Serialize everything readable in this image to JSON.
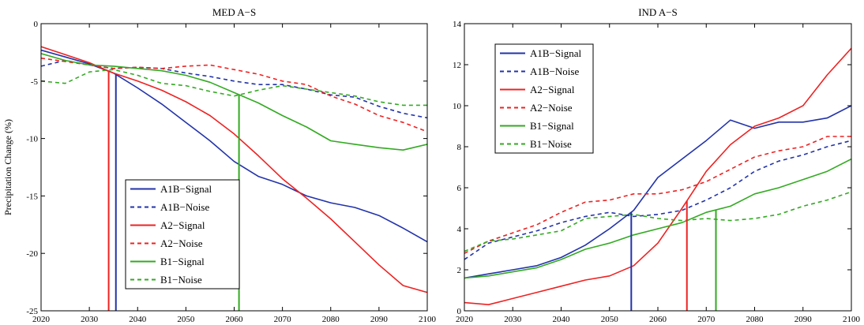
{
  "chart_data": [
    {
      "type": "line",
      "title": "MED A−S",
      "xlabel": "",
      "ylabel": "Precipitation Change (%)",
      "xlim": [
        2020,
        2100
      ],
      "ylim": [
        -25,
        0
      ],
      "xticks": [
        2020,
        2030,
        2040,
        2050,
        2060,
        2070,
        2080,
        2090,
        2100
      ],
      "yticks": [
        -25,
        -20,
        -15,
        -10,
        -5,
        0
      ],
      "grid": false,
      "legend_position": "bottom-left",
      "x": [
        2020,
        2025,
        2030,
        2035,
        2040,
        2045,
        2050,
        2055,
        2060,
        2065,
        2070,
        2075,
        2080,
        2085,
        2090,
        2095,
        2100
      ],
      "series": [
        {
          "name": "A1B−Signal",
          "color": "#2233aa",
          "dash": "solid",
          "values": [
            -2.3,
            -2.9,
            -3.5,
            -4.3,
            -5.6,
            -7.0,
            -8.6,
            -10.2,
            -12.0,
            -13.3,
            -14.0,
            -15.0,
            -15.6,
            -16.0,
            -16.7,
            -17.8,
            -19.0
          ]
        },
        {
          "name": "A1B−Noise",
          "color": "#2233aa",
          "dash": "dashed",
          "values": [
            -3.7,
            -3.2,
            -3.6,
            -3.9,
            -3.8,
            -3.9,
            -4.3,
            -4.6,
            -5.0,
            -5.3,
            -5.3,
            -5.7,
            -6.2,
            -6.4,
            -7.2,
            -7.8,
            -8.2
          ]
        },
        {
          "name": "A2−Signal",
          "color": "#ee2222",
          "dash": "solid",
          "values": [
            -2.0,
            -2.7,
            -3.4,
            -4.3,
            -5.0,
            -5.8,
            -6.8,
            -8.0,
            -9.6,
            -11.5,
            -13.5,
            -15.2,
            -17.0,
            -19.0,
            -21.0,
            -22.8,
            -23.4
          ]
        },
        {
          "name": "A2−Noise",
          "color": "#ee2222",
          "dash": "dashed",
          "values": [
            -3.0,
            -3.3,
            -3.6,
            -3.9,
            -3.8,
            -3.9,
            -3.7,
            -3.6,
            -4.0,
            -4.4,
            -5.0,
            -5.3,
            -6.3,
            -7.0,
            -8.0,
            -8.6,
            -9.4
          ]
        },
        {
          "name": "B1−Signal",
          "color": "#33aa22",
          "dash": "solid",
          "values": [
            -2.6,
            -3.2,
            -3.6,
            -3.7,
            -3.9,
            -4.1,
            -4.5,
            -5.1,
            -6.0,
            -6.9,
            -8.0,
            -9.0,
            -10.2,
            -10.5,
            -10.8,
            -11.0,
            -10.5
          ]
        },
        {
          "name": "B1−Noise",
          "color": "#33aa22",
          "dash": "dashed",
          "values": [
            -5.0,
            -5.2,
            -4.2,
            -4.0,
            -4.5,
            -5.2,
            -5.4,
            -5.9,
            -6.3,
            -5.8,
            -5.4,
            -5.7,
            -6.0,
            -6.3,
            -6.8,
            -7.1,
            -7.1
          ]
        }
      ],
      "vertical_markers": [
        {
          "x": 2034,
          "color": "#ee2222"
        },
        {
          "x": 2035.5,
          "color": "#2233aa"
        },
        {
          "x": 2061,
          "color": "#33aa22"
        }
      ]
    },
    {
      "type": "line",
      "title": "IND A−S",
      "xlabel": "",
      "ylabel": "",
      "xlim": [
        2020,
        2100
      ],
      "ylim": [
        0,
        14
      ],
      "xticks": [
        2020,
        2030,
        2040,
        2050,
        2060,
        2070,
        2080,
        2090,
        2100
      ],
      "yticks": [
        0,
        2,
        4,
        6,
        8,
        10,
        12,
        14
      ],
      "grid": false,
      "legend_position": "top-left",
      "x": [
        2020,
        2025,
        2030,
        2035,
        2040,
        2045,
        2050,
        2055,
        2060,
        2065,
        2070,
        2075,
        2080,
        2085,
        2090,
        2095,
        2100
      ],
      "series": [
        {
          "name": "A1B−Signal",
          "color": "#2233aa",
          "dash": "solid",
          "values": [
            1.6,
            1.8,
            2.0,
            2.2,
            2.6,
            3.2,
            4.0,
            4.9,
            6.5,
            7.4,
            8.3,
            9.3,
            8.9,
            9.2,
            9.2,
            9.4,
            10.0
          ]
        },
        {
          "name": "A1B−Noise",
          "color": "#2233aa",
          "dash": "dashed",
          "values": [
            2.5,
            3.3,
            3.6,
            3.9,
            4.3,
            4.6,
            4.8,
            4.6,
            4.7,
            4.9,
            5.4,
            6.0,
            6.8,
            7.3,
            7.6,
            8.0,
            8.3
          ]
        },
        {
          "name": "A2−Signal",
          "color": "#ee2222",
          "dash": "solid",
          "values": [
            0.4,
            0.3,
            0.6,
            0.9,
            1.2,
            1.5,
            1.7,
            2.2,
            3.3,
            5.0,
            6.8,
            8.1,
            9.0,
            9.4,
            10.0,
            11.5,
            12.8
          ]
        },
        {
          "name": "A2−Noise",
          "color": "#ee2222",
          "dash": "dashed",
          "values": [
            2.8,
            3.4,
            3.8,
            4.2,
            4.8,
            5.3,
            5.4,
            5.7,
            5.7,
            5.9,
            6.3,
            6.9,
            7.5,
            7.8,
            8.0,
            8.5,
            8.5
          ]
        },
        {
          "name": "B1−Signal",
          "color": "#33aa22",
          "dash": "solid",
          "values": [
            1.6,
            1.7,
            1.9,
            2.1,
            2.5,
            3.0,
            3.3,
            3.7,
            4.0,
            4.3,
            4.8,
            5.1,
            5.7,
            6.0,
            6.4,
            6.8,
            7.4
          ]
        },
        {
          "name": "B1−Noise",
          "color": "#33aa22",
          "dash": "dashed",
          "values": [
            2.9,
            3.4,
            3.5,
            3.7,
            3.9,
            4.5,
            4.6,
            4.7,
            4.5,
            4.4,
            4.5,
            4.4,
            4.5,
            4.7,
            5.1,
            5.4,
            5.8
          ]
        }
      ],
      "vertical_markers": [
        {
          "x": 2054.5,
          "color": "#2233aa"
        },
        {
          "x": 2066,
          "color": "#ee2222"
        },
        {
          "x": 2072,
          "color": "#33aa22"
        }
      ]
    }
  ]
}
